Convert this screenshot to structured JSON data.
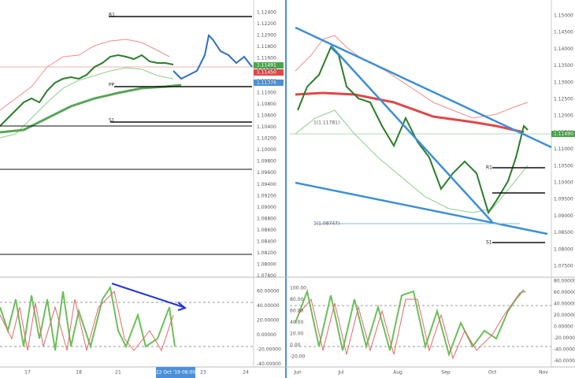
{
  "left": {
    "price_axis": [
      "1.12400",
      "1.12200",
      "1.12000",
      "1.11800",
      "1.11600",
      "1.11400",
      "1.11200",
      "1.11000",
      "1.10800",
      "1.10600",
      "1.10400",
      "1.10200",
      "1.10000",
      "1.09800",
      "1.09600",
      "1.09400",
      "1.09200",
      "1.09000",
      "1.08800",
      "1.08600",
      "1.08400",
      "1.08200",
      "1.08000",
      "1.07800"
    ],
    "badges": [
      "1.11491",
      "1.11450",
      "1.11376"
    ],
    "levels": [
      "R1",
      "PP",
      "S1"
    ],
    "osc_axis": [
      "60.00000",
      "40.00000",
      "20.00000",
      "0.00000",
      "-20.00000",
      "-40.00000"
    ],
    "time_axis": [
      "17",
      "18",
      "21",
      "23",
      "24"
    ],
    "cursor_time": "22 Oct '19  08:00"
  },
  "right": {
    "price_axis": [
      "1.15000",
      "1.14500",
      "1.14000",
      "1.13500",
      "1.13000",
      "1.12500",
      "1.12000",
      "1.11500",
      "1.11000",
      "1.10500",
      "1.10000",
      "1.09500",
      "1.09000",
      "1.08500",
      "1.08000",
      "1.07500"
    ],
    "badge": "1.11490",
    "levels": [
      "R1",
      "S1"
    ],
    "fib_labels": [
      "1(1.11781)",
      "1(1.08747)"
    ],
    "osc_axis": [
      "80.00000",
      "60.00000",
      "40.00000",
      "20.00000",
      "0.00000",
      "-20.00000",
      "-40.00000",
      "-60.00000"
    ],
    "osc_left_axis": [
      "100.00",
      "80.00",
      "60.00",
      "40.00",
      "20.00",
      "0.00",
      "-20.00"
    ],
    "time_axis": [
      "Jun",
      "Jul",
      "Aug",
      "Sep",
      "Oct",
      "Nov"
    ]
  }
}
